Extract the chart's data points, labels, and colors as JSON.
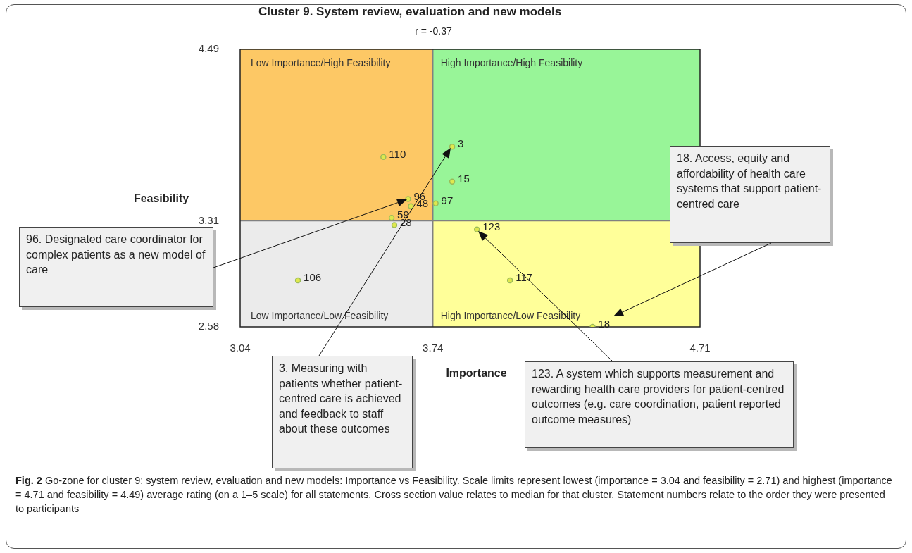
{
  "chart_data": {
    "type": "scatter",
    "title": "Cluster 9. System review, evaluation and new models",
    "subtitle": "r = -0.37",
    "xlabel": "Importance",
    "ylabel": "Feasibility",
    "xlim": [
      3.04,
      4.71
    ],
    "xticks": [
      3.04,
      3.74,
      4.71
    ],
    "ylim": [
      2.58,
      4.49
    ],
    "yticks": [
      2.58,
      3.31,
      4.49
    ],
    "grid": false,
    "legend": false,
    "marker": "circle",
    "series": [
      {
        "name": "3",
        "color": "#9bbb59",
        "x": [
          3.81
        ],
        "values": [
          3.82
        ]
      },
      {
        "name": "110",
        "color": "#9bbb59",
        "x": [
          3.56
        ],
        "values": [
          3.75
        ]
      },
      {
        "name": "15",
        "color": "#9bbb59",
        "x": [
          3.81
        ],
        "values": [
          3.58
        ]
      },
      {
        "name": "96",
        "color": "#9bbb59",
        "x": [
          3.65
        ],
        "values": [
          3.46
        ]
      },
      {
        "name": "48",
        "color": "#9bbb59",
        "x": [
          3.66
        ],
        "values": [
          3.41
        ]
      },
      {
        "name": "97",
        "color": "#9bbb59",
        "x": [
          3.75
        ],
        "values": [
          3.43
        ]
      },
      {
        "name": "59",
        "color": "#9bbb59",
        "x": [
          3.59
        ],
        "values": [
          3.33
        ]
      },
      {
        "name": "28",
        "color": "#9bbb59",
        "x": [
          3.6
        ],
        "values": [
          3.28
        ]
      },
      {
        "name": "123",
        "color": "#9bbb59",
        "x": [
          3.9
        ],
        "values": [
          3.25
        ]
      },
      {
        "name": "106",
        "color": "#9bbb59",
        "x": [
          3.25
        ],
        "values": [
          2.9
        ]
      },
      {
        "name": "117",
        "color": "#9bbb59",
        "x": [
          4.02
        ],
        "values": [
          2.9
        ]
      },
      {
        "name": "18",
        "color": "#9bbb59",
        "x": [
          4.32
        ],
        "values": [
          2.58
        ]
      }
    ],
    "ref_lines": [
      {
        "axis": "x",
        "value": 3.74,
        "color": "#808080"
      },
      {
        "axis": "y",
        "value": 3.31,
        "color": "#808080"
      }
    ],
    "annotations": [
      "Low Importance/High Feasibility",
      "High Importance/High Feasibility",
      "Low Importance/Low Feasibility",
      "High Importance/Low Feasibility",
      "96. Designated care coordinator for complex patients as a new model of care",
      "3. Measuring with patients whether patient-centred care is achieved and feedback to staff about these outcomes",
      "123. A system which supports measurement and rewarding health care providers for patient-centred outcomes (e.g. care coordination, patient reported outcome measures)",
      "18. Access, equity and affordability of health care systems that support patient-centred care",
      "Fig. 2 Go-zone for cluster 9: system review, evaluation and new models: Importance vs Feasibility. Scale limits represent lowest (importance = 3.04 and feasibility = 2.71) and highest (importance = 4.71 and feasibility = 4.49) average rating (on a 1–5 scale) for all statements. Cross section value relates to median for that cluster. Statement numbers relate to the order they were presented to participants"
    ]
  }
}
